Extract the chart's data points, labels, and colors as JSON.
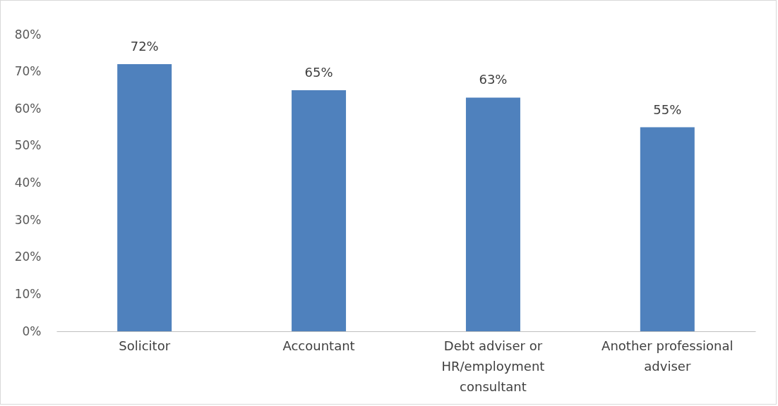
{
  "chart_data": {
    "type": "bar",
    "categories": [
      "Solicitor",
      "Accountant",
      "Debt adviser or HR/employment consultant",
      "Another professional adviser"
    ],
    "values": [
      72,
      65,
      63,
      55
    ],
    "value_labels": [
      "72%",
      "65%",
      "63%",
      "55%"
    ],
    "color": "#4f81bd",
    "yticks": [
      {
        "value": 0,
        "label": "0%"
      },
      {
        "value": 10,
        "label": "10%"
      },
      {
        "value": 20,
        "label": "20%"
      },
      {
        "value": 30,
        "label": "30%"
      },
      {
        "value": 40,
        "label": "40%"
      },
      {
        "value": 50,
        "label": "50%"
      },
      {
        "value": 60,
        "label": "60%"
      },
      {
        "value": 70,
        "label": "70%"
      },
      {
        "value": 80,
        "label": "80%"
      }
    ],
    "ylim": [
      0,
      80
    ]
  }
}
